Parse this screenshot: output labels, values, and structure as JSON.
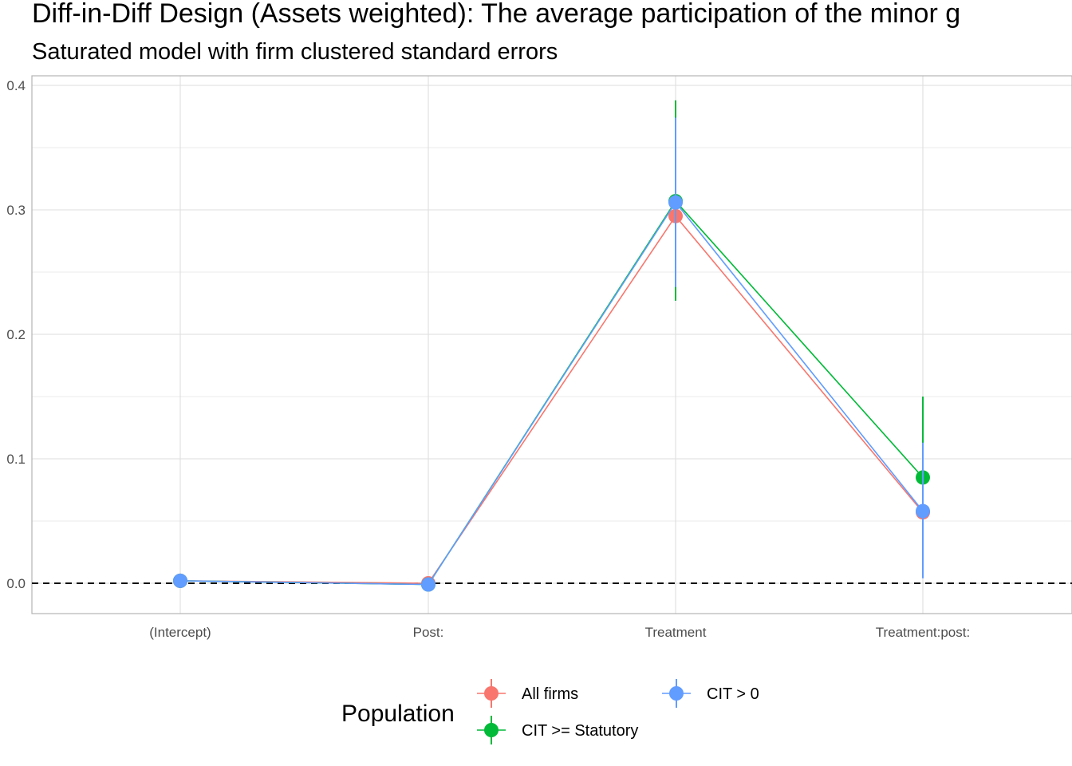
{
  "chart_data": {
    "type": "scatter",
    "title": "Diff-in-Diff Design (Assets weighted): The average participation of the minor g",
    "subtitle": "Saturated model with firm clustered standard errors",
    "xlabel": "",
    "ylabel": "",
    "categories": [
      "(Intercept)",
      "Post:",
      "Treatment",
      "Treatment:post:"
    ],
    "ylim": [
      -0.024,
      0.407
    ],
    "yticks": [
      0.0,
      0.1,
      0.2,
      0.3,
      0.4
    ],
    "ytick_labels": [
      "0.0",
      "0.1",
      "0.2",
      "0.3",
      "0.4"
    ],
    "grid": true,
    "reference_line": {
      "y": 0.0,
      "style": "dashed"
    },
    "legend": {
      "title": "Population",
      "position": "bottom"
    },
    "series": [
      {
        "name": "All firms",
        "color": "#F8766D",
        "values": [
          0.002,
          0.0,
          0.295,
          0.057
        ],
        "lower": [
          0.002,
          0.0,
          0.295,
          0.057
        ],
        "upper": [
          0.002,
          0.0,
          0.295,
          0.057
        ]
      },
      {
        "name": "CIT >= Statutory",
        "color": "#00BA38",
        "values": [
          0.002,
          -0.001,
          0.307,
          0.085
        ],
        "lower": [
          0.001,
          -0.002,
          0.227,
          0.021
        ],
        "upper": [
          0.003,
          0.0,
          0.388,
          0.15
        ]
      },
      {
        "name": "CIT > 0",
        "color": "#619CFF",
        "values": [
          0.002,
          -0.001,
          0.306,
          0.058
        ],
        "lower": [
          0.001,
          -0.002,
          0.238,
          0.004
        ],
        "upper": [
          0.003,
          0.0,
          0.374,
          0.113
        ]
      }
    ]
  }
}
